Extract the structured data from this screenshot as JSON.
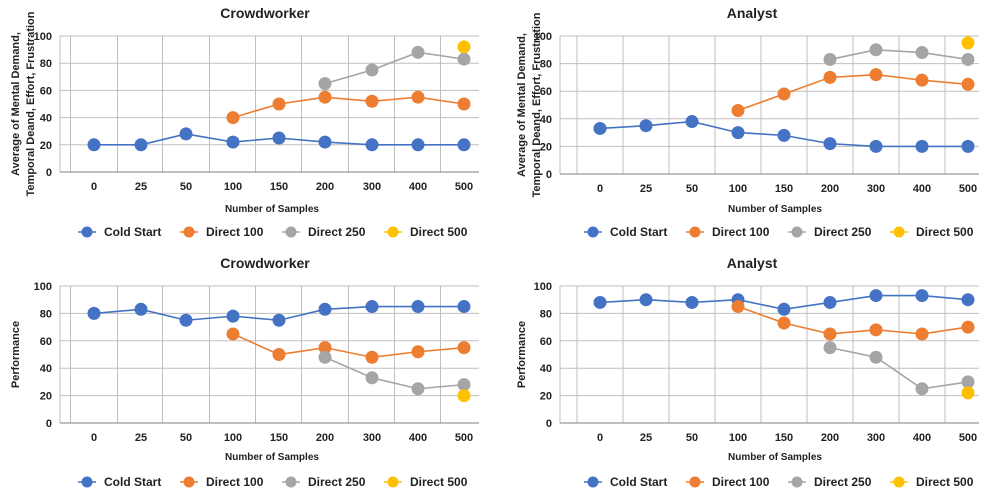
{
  "colors": {
    "Cold Start": "#4472C4",
    "Direct 100": "#ED7D31",
    "Direct 250": "#A5A5A5",
    "Direct 500": "#FFC000",
    "grid": "#BFBFBF",
    "axis": "#7F7F7F"
  },
  "chart_data": [
    {
      "type": "line",
      "title": "Crowdworker",
      "xlabel": "Number of Samples",
      "ylabel": [
        "Average of Mental Demand,",
        "Temporal Deand, Effort, Frustration"
      ],
      "categories": [
        "0",
        "25",
        "50",
        "100",
        "150",
        "200",
        "300",
        "400",
        "500"
      ],
      "ylim": [
        0,
        100
      ],
      "yticks": [
        "0",
        "20",
        "40",
        "60",
        "80",
        "100"
      ],
      "grid": true,
      "legend": "bottom",
      "series": [
        {
          "name": "Cold Start",
          "values": [
            20,
            20,
            28,
            22,
            25,
            22,
            20,
            20,
            20
          ]
        },
        {
          "name": "Direct 100",
          "values": [
            null,
            null,
            null,
            40,
            50,
            55,
            52,
            55,
            50
          ]
        },
        {
          "name": "Direct 250",
          "values": [
            null,
            null,
            null,
            null,
            null,
            65,
            75,
            88,
            83
          ]
        },
        {
          "name": "Direct 500",
          "values": [
            null,
            null,
            null,
            null,
            null,
            null,
            null,
            null,
            92
          ]
        }
      ]
    },
    {
      "type": "line",
      "title": "Analyst",
      "xlabel": "Number of Samples",
      "ylabel": [
        "Average of Mental Demand,",
        "Temporal Deand, Effort, Frustration"
      ],
      "categories": [
        "0",
        "25",
        "50",
        "100",
        "150",
        "200",
        "300",
        "400",
        "500"
      ],
      "ylim": [
        0,
        100
      ],
      "yticks": [
        "0",
        "20",
        "40",
        "60",
        "80",
        "100"
      ],
      "grid": true,
      "legend": "bottom",
      "series": [
        {
          "name": "Cold Start",
          "values": [
            33,
            35,
            38,
            30,
            28,
            22,
            20,
            20,
            20
          ]
        },
        {
          "name": "Direct 100",
          "values": [
            null,
            null,
            null,
            46,
            58,
            70,
            72,
            68,
            65
          ]
        },
        {
          "name": "Direct 250",
          "values": [
            null,
            null,
            null,
            null,
            null,
            83,
            90,
            88,
            83
          ]
        },
        {
          "name": "Direct 500",
          "values": [
            null,
            null,
            null,
            null,
            null,
            null,
            null,
            null,
            95
          ]
        }
      ]
    },
    {
      "type": "line",
      "title": "Crowdworker",
      "xlabel": "Number of Samples",
      "ylabel": [
        "Performance"
      ],
      "categories": [
        "0",
        "25",
        "50",
        "100",
        "150",
        "200",
        "300",
        "400",
        "500"
      ],
      "ylim": [
        0,
        100
      ],
      "yticks": [
        "0",
        "20",
        "40",
        "60",
        "80",
        "100"
      ],
      "grid": true,
      "legend": "bottom",
      "series": [
        {
          "name": "Cold Start",
          "values": [
            80,
            83,
            75,
            78,
            75,
            83,
            85,
            85,
            85
          ]
        },
        {
          "name": "Direct 100",
          "values": [
            null,
            null,
            null,
            65,
            50,
            55,
            48,
            52,
            55
          ]
        },
        {
          "name": "Direct 250",
          "values": [
            null,
            null,
            null,
            null,
            null,
            48,
            33,
            25,
            28
          ]
        },
        {
          "name": "Direct 500",
          "values": [
            null,
            null,
            null,
            null,
            null,
            null,
            null,
            null,
            20
          ]
        }
      ]
    },
    {
      "type": "line",
      "title": "Analyst",
      "xlabel": "Number of Samples",
      "ylabel": [
        "Performance"
      ],
      "categories": [
        "0",
        "25",
        "50",
        "100",
        "150",
        "200",
        "300",
        "400",
        "500"
      ],
      "ylim": [
        0,
        100
      ],
      "yticks": [
        "0",
        "20",
        "40",
        "60",
        "80",
        "100"
      ],
      "grid": true,
      "legend": "bottom",
      "series": [
        {
          "name": "Cold Start",
          "values": [
            88,
            90,
            88,
            90,
            83,
            88,
            93,
            93,
            90
          ]
        },
        {
          "name": "Direct 100",
          "values": [
            null,
            null,
            null,
            85,
            73,
            65,
            68,
            65,
            70
          ]
        },
        {
          "name": "Direct 250",
          "values": [
            null,
            null,
            null,
            null,
            null,
            55,
            48,
            25,
            30
          ]
        },
        {
          "name": "Direct 500",
          "values": [
            null,
            null,
            null,
            null,
            null,
            null,
            null,
            null,
            22
          ]
        }
      ]
    }
  ]
}
